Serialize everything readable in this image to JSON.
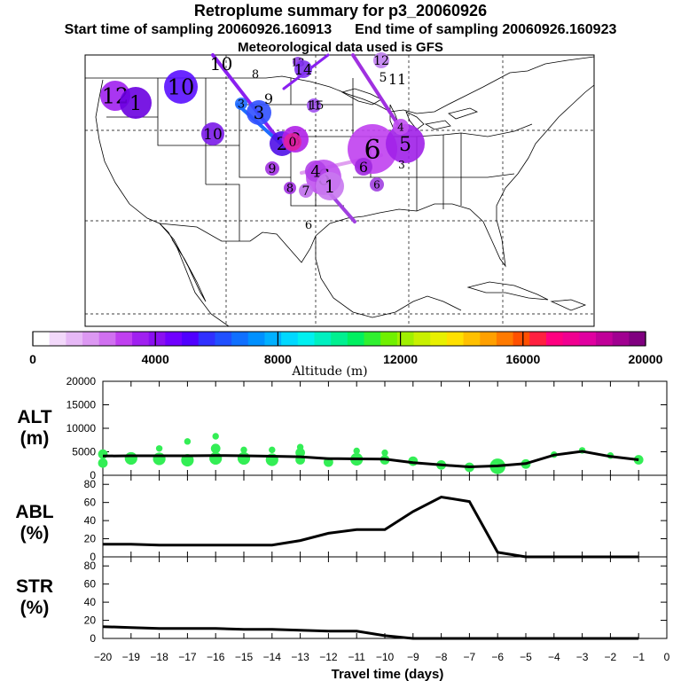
{
  "header": {
    "title": "Retroplume summary for p3_20060926",
    "start_label": "Start time of sampling 20060926.160913",
    "end_label": "End time of sampling 20060926.160923",
    "met_label": "Meteorological data used is GFS"
  },
  "map": {
    "numbers": [
      "1",
      "1",
      "2",
      "3",
      "4",
      "5",
      "6",
      "7",
      "8",
      "9",
      "10",
      "11",
      "12",
      "13",
      "14",
      "15",
      "16"
    ],
    "plumes": [
      {
        "label": "12",
        "color": "#a020f0"
      },
      {
        "label": "1",
        "color": "#6a00e0"
      },
      {
        "label": "10",
        "color": "#5a10ff"
      },
      {
        "label": "3",
        "color": "#1e6cff"
      },
      {
        "label": "3",
        "color": "#3050ff"
      },
      {
        "label": "10",
        "color": "#7a1ae8"
      },
      {
        "label": "2",
        "color": "#5010e8"
      },
      {
        "label": "8",
        "color": "#b020e8"
      },
      {
        "label": "9",
        "color": "#a030e0"
      },
      {
        "label": "6",
        "color": "#c050f0"
      },
      {
        "label": "4",
        "color": "#b040e8"
      },
      {
        "label": "1",
        "color": "#c878f0"
      },
      {
        "label": "6",
        "color": "#c040f0"
      },
      {
        "label": "5",
        "color": "#a020e8"
      },
      {
        "label": "6",
        "color": "#a028e0"
      },
      {
        "label": "7",
        "color": "#c070ec"
      },
      {
        "label": "8",
        "color": "#a030e0"
      },
      {
        "label": "11",
        "color": "#a050f0"
      },
      {
        "label": "13",
        "color": "#9040e0"
      },
      {
        "label": "14",
        "color": "#8030f0"
      },
      {
        "label": "12",
        "color": "#c080f0"
      },
      {
        "label": "6",
        "color": "#a040e0"
      },
      {
        "label": "0",
        "color": "#e020a0"
      },
      {
        "label": "4",
        "color": "#c050f0"
      }
    ]
  },
  "colorbar": {
    "tick_labels": [
      "0",
      "4000",
      "8000",
      "12000",
      "16000",
      "20000"
    ],
    "axis_label": "Altitude (m)",
    "colors": [
      "#ffffff",
      "#f2d8fa",
      "#e6b8f6",
      "#dc98f2",
      "#d070f0",
      "#c040f0",
      "#a020f0",
      "#8a10f0",
      "#7000ff",
      "#5000ff",
      "#3030ff",
      "#2050ff",
      "#1070ff",
      "#0090ff",
      "#00b0ff",
      "#00d8ff",
      "#00f0f0",
      "#00f0c0",
      "#00f090",
      "#00f060",
      "#30f030",
      "#70f000",
      "#a0f000",
      "#c8f000",
      "#e8f000",
      "#ffe000",
      "#ffc000",
      "#ffa000",
      "#ff7a00",
      "#ff5000",
      "#ff2040",
      "#ff0080",
      "#f00090",
      "#e000a0",
      "#c00098",
      "#a00090",
      "#800080"
    ]
  },
  "chart_data": [
    {
      "type": "scatter",
      "panel": "ALT",
      "ylabel_line1": "ALT",
      "ylabel_line2": "(m)",
      "ylim": [
        0,
        20000
      ],
      "yticks": [
        0,
        5000,
        10000,
        15000,
        20000
      ],
      "ytick_labels": [
        "0",
        "5000",
        "10000",
        "15000",
        "20000"
      ],
      "x": [
        -20,
        -19,
        -18,
        -17,
        -16,
        -15,
        -14,
        -13,
        -12,
        -11,
        -10,
        -9,
        -8,
        -7,
        -6,
        -5,
        -4,
        -3,
        -2,
        -1
      ],
      "mean_altitude_m": [
        4100,
        4150,
        4150,
        4150,
        4200,
        4150,
        4050,
        3950,
        3550,
        3500,
        3450,
        2700,
        2200,
        1800,
        2000,
        2500,
        4300,
        5100,
        4000,
        3300
      ],
      "scatter_points": [
        {
          "x": -20,
          "y": 2600,
          "size": 2
        },
        {
          "x": -20,
          "y": 4500,
          "size": 2
        },
        {
          "x": -19,
          "y": 3600,
          "size": 3
        },
        {
          "x": -18,
          "y": 3500,
          "size": 3
        },
        {
          "x": -18,
          "y": 5700,
          "size": 1
        },
        {
          "x": -17,
          "y": 3200,
          "size": 3
        },
        {
          "x": -17,
          "y": 7200,
          "size": 1
        },
        {
          "x": -16,
          "y": 3600,
          "size": 3
        },
        {
          "x": -16,
          "y": 5700,
          "size": 2
        },
        {
          "x": -16,
          "y": 8300,
          "size": 1
        },
        {
          "x": -15,
          "y": 3600,
          "size": 3
        },
        {
          "x": -15,
          "y": 5400,
          "size": 1
        },
        {
          "x": -14,
          "y": 3300,
          "size": 3
        },
        {
          "x": -14,
          "y": 5400,
          "size": 1
        },
        {
          "x": -13,
          "y": 3300,
          "size": 2
        },
        {
          "x": -13,
          "y": 4800,
          "size": 2
        },
        {
          "x": -13,
          "y": 6000,
          "size": 1
        },
        {
          "x": -12,
          "y": 2800,
          "size": 2
        },
        {
          "x": -11,
          "y": 3400,
          "size": 3
        },
        {
          "x": -11,
          "y": 5200,
          "size": 1
        },
        {
          "x": -10,
          "y": 3300,
          "size": 2
        },
        {
          "x": -10,
          "y": 4800,
          "size": 1
        },
        {
          "x": -9,
          "y": 3000,
          "size": 2
        },
        {
          "x": -8,
          "y": 2200,
          "size": 2
        },
        {
          "x": -7,
          "y": 1700,
          "size": 2
        },
        {
          "x": -6,
          "y": 1900,
          "size": 4
        },
        {
          "x": -5,
          "y": 2400,
          "size": 2
        },
        {
          "x": -4,
          "y": 4400,
          "size": 1
        },
        {
          "x": -3,
          "y": 5300,
          "size": 1
        },
        {
          "x": -2,
          "y": 4200,
          "size": 1
        },
        {
          "x": -1,
          "y": 3300,
          "size": 2
        }
      ]
    },
    {
      "type": "line",
      "panel": "ABL",
      "ylabel_line1": "ABL",
      "ylabel_line2": "(%)",
      "ylim": [
        0,
        90
      ],
      "yticks": [
        0,
        20,
        40,
        60,
        80
      ],
      "ytick_labels": [
        "0",
        "20",
        "40",
        "60",
        "80"
      ],
      "x": [
        -20,
        -19,
        -18,
        -17,
        -16,
        -15,
        -14,
        -13,
        -12,
        -11,
        -10,
        -9,
        -8,
        -7,
        -6,
        -5,
        -4,
        -3,
        -2,
        -1
      ],
      "y": [
        14,
        14,
        13,
        13,
        13,
        13,
        13,
        18,
        26,
        30,
        30,
        50,
        66,
        61,
        5,
        0,
        0,
        0,
        0,
        0
      ]
    },
    {
      "type": "line",
      "panel": "STR",
      "ylabel_line1": "STR",
      "ylabel_line2": "(%)",
      "ylim": [
        0,
        90
      ],
      "yticks": [
        0,
        20,
        40,
        60,
        80
      ],
      "ytick_labels": [
        "0",
        "20",
        "40",
        "60",
        "80"
      ],
      "x": [
        -20,
        -19,
        -18,
        -17,
        -16,
        -15,
        -14,
        -13,
        -12,
        -11,
        -10,
        -9,
        -8,
        -7,
        -6,
        -5,
        -4,
        -3,
        -2,
        -1
      ],
      "y": [
        13,
        12,
        11,
        11,
        11,
        10,
        10,
        9,
        8,
        8,
        3,
        0,
        0,
        0,
        0,
        0,
        0,
        0,
        0,
        0
      ]
    }
  ],
  "xaxis": {
    "xlim": [
      -20,
      0
    ],
    "tick_labels": [
      "−20",
      "−19",
      "−18",
      "−17",
      "−16",
      "−15",
      "−14",
      "−13",
      "−12",
      "−11",
      "−10",
      "−9",
      "−8",
      "−7",
      "−6",
      "−5",
      "−4",
      "−3",
      "−2",
      "−1",
      "0"
    ],
    "label": "Travel time (days)"
  },
  "colors": {
    "scatter": "#33ee55",
    "line": "#000000"
  }
}
